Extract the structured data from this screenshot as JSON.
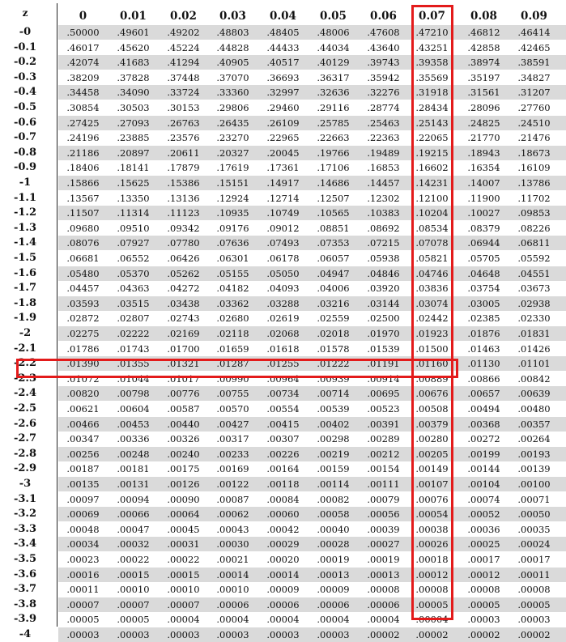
{
  "header": {
    "z_label": "z",
    "columns": [
      "0",
      "0.01",
      "0.02",
      "0.03",
      "0.04",
      "0.05",
      "0.06",
      "0.07",
      "0.08",
      "0.09"
    ]
  },
  "highlight": {
    "row_z": "-2.3",
    "column": "0.07",
    "value": ".00889",
    "color": "#e31b1b"
  },
  "shade_color": "#dadada",
  "rows": [
    {
      "z": "-0",
      "values": [
        ".50000",
        ".49601",
        ".49202",
        ".48803",
        ".48405",
        ".48006",
        ".47608",
        ".47210",
        ".46812",
        ".46414"
      ]
    },
    {
      "z": "-0.1",
      "values": [
        ".46017",
        ".45620",
        ".45224",
        ".44828",
        ".44433",
        ".44034",
        ".43640",
        ".43251",
        ".42858",
        ".42465"
      ]
    },
    {
      "z": "-0.2",
      "values": [
        ".42074",
        ".41683",
        ".41294",
        ".40905",
        ".40517",
        ".40129",
        ".39743",
        ".39358",
        ".38974",
        ".38591"
      ]
    },
    {
      "z": "-0.3",
      "values": [
        ".38209",
        ".37828",
        ".37448",
        ".37070",
        ".36693",
        ".36317",
        ".35942",
        ".35569",
        ".35197",
        ".34827"
      ]
    },
    {
      "z": "-0.4",
      "values": [
        ".34458",
        ".34090",
        ".33724",
        ".33360",
        ".32997",
        ".32636",
        ".32276",
        ".31918",
        ".31561",
        ".31207"
      ]
    },
    {
      "z": "-0.5",
      "values": [
        ".30854",
        ".30503",
        ".30153",
        ".29806",
        ".29460",
        ".29116",
        ".28774",
        ".28434",
        ".28096",
        ".27760"
      ]
    },
    {
      "z": "-0.6",
      "values": [
        ".27425",
        ".27093",
        ".26763",
        ".26435",
        ".26109",
        ".25785",
        ".25463",
        ".25143",
        ".24825",
        ".24510"
      ]
    },
    {
      "z": "-0.7",
      "values": [
        ".24196",
        ".23885",
        ".23576",
        ".23270",
        ".22965",
        ".22663",
        ".22363",
        ".22065",
        ".21770",
        ".21476"
      ]
    },
    {
      "z": "-0.8",
      "values": [
        ".21186",
        ".20897",
        ".20611",
        ".20327",
        ".20045",
        ".19766",
        ".19489",
        ".19215",
        ".18943",
        ".18673"
      ]
    },
    {
      "z": "-0.9",
      "values": [
        ".18406",
        ".18141",
        ".17879",
        ".17619",
        ".17361",
        ".17106",
        ".16853",
        ".16602",
        ".16354",
        ".16109"
      ]
    },
    {
      "z": "-1",
      "values": [
        ".15866",
        ".15625",
        ".15386",
        ".15151",
        ".14917",
        ".14686",
        ".14457",
        ".14231",
        ".14007",
        ".13786"
      ]
    },
    {
      "z": "-1.1",
      "values": [
        ".13567",
        ".13350",
        ".13136",
        ".12924",
        ".12714",
        ".12507",
        ".12302",
        ".12100",
        ".11900",
        ".11702"
      ]
    },
    {
      "z": "-1.2",
      "values": [
        ".11507",
        ".11314",
        ".11123",
        ".10935",
        ".10749",
        ".10565",
        ".10383",
        ".10204",
        ".10027",
        ".09853"
      ]
    },
    {
      "z": "-1.3",
      "values": [
        ".09680",
        ".09510",
        ".09342",
        ".09176",
        ".09012",
        ".08851",
        ".08692",
        ".08534",
        ".08379",
        ".08226"
      ]
    },
    {
      "z": "-1.4",
      "values": [
        ".08076",
        ".07927",
        ".07780",
        ".07636",
        ".07493",
        ".07353",
        ".07215",
        ".07078",
        ".06944",
        ".06811"
      ]
    },
    {
      "z": "-1.5",
      "values": [
        ".06681",
        ".06552",
        ".06426",
        ".06301",
        ".06178",
        ".06057",
        ".05938",
        ".05821",
        ".05705",
        ".05592"
      ]
    },
    {
      "z": "-1.6",
      "values": [
        ".05480",
        ".05370",
        ".05262",
        ".05155",
        ".05050",
        ".04947",
        ".04846",
        ".04746",
        ".04648",
        ".04551"
      ]
    },
    {
      "z": "-1.7",
      "values": [
        ".04457",
        ".04363",
        ".04272",
        ".04182",
        ".04093",
        ".04006",
        ".03920",
        ".03836",
        ".03754",
        ".03673"
      ]
    },
    {
      "z": "-1.8",
      "values": [
        ".03593",
        ".03515",
        ".03438",
        ".03362",
        ".03288",
        ".03216",
        ".03144",
        ".03074",
        ".03005",
        ".02938"
      ]
    },
    {
      "z": "-1.9",
      "values": [
        ".02872",
        ".02807",
        ".02743",
        ".02680",
        ".02619",
        ".02559",
        ".02500",
        ".02442",
        ".02385",
        ".02330"
      ]
    },
    {
      "z": "-2",
      "values": [
        ".02275",
        ".02222",
        ".02169",
        ".02118",
        ".02068",
        ".02018",
        ".01970",
        ".01923",
        ".01876",
        ".01831"
      ]
    },
    {
      "z": "-2.1",
      "values": [
        ".01786",
        ".01743",
        ".01700",
        ".01659",
        ".01618",
        ".01578",
        ".01539",
        ".01500",
        ".01463",
        ".01426"
      ]
    },
    {
      "z": "-2.2",
      "values": [
        ".01390",
        ".01355",
        ".01321",
        ".01287",
        ".01255",
        ".01222",
        ".01191",
        ".01160",
        ".01130",
        ".01101"
      ]
    },
    {
      "z": "-2.3",
      "values": [
        ".01072",
        ".01044",
        ".01017",
        ".00990",
        ".00964",
        ".00939",
        ".00914",
        ".00889",
        ".00866",
        ".00842"
      ]
    },
    {
      "z": "-2.4",
      "values": [
        ".00820",
        ".00798",
        ".00776",
        ".00755",
        ".00734",
        ".00714",
        ".00695",
        ".00676",
        ".00657",
        ".00639"
      ]
    },
    {
      "z": "-2.5",
      "values": [
        ".00621",
        ".00604",
        ".00587",
        ".00570",
        ".00554",
        ".00539",
        ".00523",
        ".00508",
        ".00494",
        ".00480"
      ]
    },
    {
      "z": "-2.6",
      "values": [
        ".00466",
        ".00453",
        ".00440",
        ".00427",
        ".00415",
        ".00402",
        ".00391",
        ".00379",
        ".00368",
        ".00357"
      ]
    },
    {
      "z": "-2.7",
      "values": [
        ".00347",
        ".00336",
        ".00326",
        ".00317",
        ".00307",
        ".00298",
        ".00289",
        ".00280",
        ".00272",
        ".00264"
      ]
    },
    {
      "z": "-2.8",
      "values": [
        ".00256",
        ".00248",
        ".00240",
        ".00233",
        ".00226",
        ".00219",
        ".00212",
        ".00205",
        ".00199",
        ".00193"
      ]
    },
    {
      "z": "-2.9",
      "values": [
        ".00187",
        ".00181",
        ".00175",
        ".00169",
        ".00164",
        ".00159",
        ".00154",
        ".00149",
        ".00144",
        ".00139"
      ]
    },
    {
      "z": "-3",
      "values": [
        ".00135",
        ".00131",
        ".00126",
        ".00122",
        ".00118",
        ".00114",
        ".00111",
        ".00107",
        ".00104",
        ".00100"
      ]
    },
    {
      "z": "-3.1",
      "values": [
        ".00097",
        ".00094",
        ".00090",
        ".00087",
        ".00084",
        ".00082",
        ".00079",
        ".00076",
        ".00074",
        ".00071"
      ]
    },
    {
      "z": "-3.2",
      "values": [
        ".00069",
        ".00066",
        ".00064",
        ".00062",
        ".00060",
        ".00058",
        ".00056",
        ".00054",
        ".00052",
        ".00050"
      ]
    },
    {
      "z": "-3.3",
      "values": [
        ".00048",
        ".00047",
        ".00045",
        ".00043",
        ".00042",
        ".00040",
        ".00039",
        ".00038",
        ".00036",
        ".00035"
      ]
    },
    {
      "z": "-3.4",
      "values": [
        ".00034",
        ".00032",
        ".00031",
        ".00030",
        ".00029",
        ".00028",
        ".00027",
        ".00026",
        ".00025",
        ".00024"
      ]
    },
    {
      "z": "-3.5",
      "values": [
        ".00023",
        ".00022",
        ".00022",
        ".00021",
        ".00020",
        ".00019",
        ".00019",
        ".00018",
        ".00017",
        ".00017"
      ]
    },
    {
      "z": "-3.6",
      "values": [
        ".00016",
        ".00015",
        ".00015",
        ".00014",
        ".00014",
        ".00013",
        ".00013",
        ".00012",
        ".00012",
        ".00011"
      ]
    },
    {
      "z": "-3.7",
      "values": [
        ".00011",
        ".00010",
        ".00010",
        ".00010",
        ".00009",
        ".00009",
        ".00008",
        ".00008",
        ".00008",
        ".00008"
      ]
    },
    {
      "z": "-3.8",
      "values": [
        ".00007",
        ".00007",
        ".00007",
        ".00006",
        ".00006",
        ".00006",
        ".00006",
        ".00005",
        ".00005",
        ".00005"
      ]
    },
    {
      "z": "-3.9",
      "values": [
        ".00005",
        ".00005",
        ".00004",
        ".00004",
        ".00004",
        ".00004",
        ".00004",
        ".00004",
        ".00003",
        ".00003"
      ]
    },
    {
      "z": "-4",
      "values": [
        ".00003",
        ".00003",
        ".00003",
        ".00003",
        ".00003",
        ".00003",
        ".00002",
        ".00002",
        ".00002",
        ".00002"
      ]
    }
  ]
}
